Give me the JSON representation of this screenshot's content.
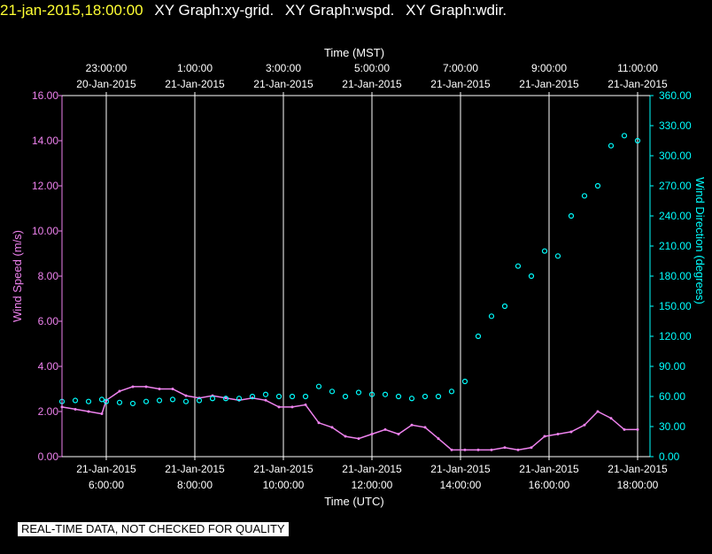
{
  "header": {
    "timestamp": "21-jan-2015,18:00:00",
    "graphs": [
      "XY Graph:xy-grid.",
      "XY Graph:wspd.",
      "XY Graph:wdir."
    ]
  },
  "notice": "REAL-TIME DATA, NOT CHECKED FOR QUALITY",
  "colors": {
    "speed": "#ee82ee",
    "direction": "#00ffff",
    "grid": "#ffffff",
    "timestamp": "#ffff33"
  },
  "chart_data": {
    "type": "scatter",
    "x_top_label": "Time (MST)",
    "x_bottom_label": "Time (UTC)",
    "ylabel_left": "Wind Speed (m/s)",
    "ylabel_right": "Wind Direction (degrees)",
    "ylim_left": [
      0,
      16
    ],
    "ylim_right": [
      0,
      360
    ],
    "xlim_utc_hours": [
      5.0,
      18.0
    ],
    "grid": "vertical only",
    "top_ticks": [
      {
        "hour": 6,
        "time": "23:00:00",
        "date": "20-Jan-2015"
      },
      {
        "hour": 8,
        "time": "1:00:00",
        "date": "21-Jan-2015"
      },
      {
        "hour": 10,
        "time": "3:00:00",
        "date": "21-Jan-2015"
      },
      {
        "hour": 12,
        "time": "5:00:00",
        "date": "21-Jan-2015"
      },
      {
        "hour": 14,
        "time": "7:00:00",
        "date": "21-Jan-2015"
      },
      {
        "hour": 16,
        "time": "9:00:00",
        "date": "21-Jan-2015"
      },
      {
        "hour": 18,
        "time": "11:00:00",
        "date": "21-Jan-2015"
      }
    ],
    "bottom_ticks": [
      {
        "hour": 6,
        "date": "21-Jan-2015",
        "time": "6:00:00"
      },
      {
        "hour": 8,
        "date": "21-Jan-2015",
        "time": "8:00:00"
      },
      {
        "hour": 10,
        "date": "21-Jan-2015",
        "time": "10:00:00"
      },
      {
        "hour": 12,
        "date": "21-Jan-2015",
        "time": "12:00:00"
      },
      {
        "hour": 14,
        "date": "21-Jan-2015",
        "time": "14:00:00"
      },
      {
        "hour": 16,
        "date": "21-Jan-2015",
        "time": "16:00:00"
      },
      {
        "hour": 18,
        "date": "21-Jan-2015",
        "time": "18:00:00"
      }
    ],
    "left_ticks": [
      "0.00",
      "2.00",
      "4.00",
      "6.00",
      "8.00",
      "10.00",
      "12.00",
      "14.00",
      "16.00"
    ],
    "right_ticks": [
      "0.00",
      "30.00",
      "60.00",
      "90.00",
      "120.00",
      "150.00",
      "180.00",
      "210.00",
      "240.00",
      "270.00",
      "300.00",
      "330.00",
      "360.00"
    ],
    "series": [
      {
        "name": "wspd",
        "x_hours": [
          5.0,
          5.3,
          5.6,
          5.9,
          6.0,
          6.3,
          6.6,
          6.9,
          7.2,
          7.5,
          7.8,
          8.1,
          8.4,
          8.7,
          9.0,
          9.3,
          9.6,
          9.9,
          10.2,
          10.5,
          10.8,
          11.1,
          11.4,
          11.7,
          12.0,
          12.3,
          12.6,
          12.9,
          13.2,
          13.5,
          13.8,
          14.1,
          14.4,
          14.7,
          15.0,
          15.3,
          15.6,
          15.9,
          16.2,
          16.5,
          16.8,
          17.1,
          17.4,
          17.7,
          18.0
        ],
        "values": [
          2.2,
          2.1,
          2.0,
          1.9,
          2.5,
          2.9,
          3.1,
          3.1,
          3.0,
          3.0,
          2.7,
          2.6,
          2.7,
          2.6,
          2.5,
          2.6,
          2.5,
          2.2,
          2.2,
          2.3,
          1.5,
          1.3,
          0.9,
          0.8,
          1.0,
          1.2,
          1.0,
          1.4,
          1.3,
          0.8,
          0.3,
          0.3,
          0.3,
          0.3,
          0.4,
          0.3,
          0.4,
          0.9,
          1.0,
          1.1,
          1.4,
          2.0,
          1.7,
          1.2,
          1.2
        ]
      },
      {
        "name": "wdir",
        "x_hours": [
          5.0,
          5.3,
          5.6,
          5.9,
          6.0,
          6.3,
          6.6,
          6.9,
          7.2,
          7.5,
          7.8,
          8.1,
          8.4,
          8.7,
          9.0,
          9.3,
          9.6,
          9.9,
          10.2,
          10.5,
          10.8,
          11.1,
          11.4,
          11.7,
          12.0,
          12.3,
          12.6,
          12.9,
          13.2,
          13.5,
          13.8,
          14.1,
          14.4,
          14.7,
          15.0,
          15.3,
          15.6,
          15.9,
          16.2,
          16.5,
          16.8,
          17.1,
          17.4,
          17.7,
          18.0
        ],
        "values": [
          55,
          56,
          55,
          57,
          55,
          54,
          53,
          55,
          56,
          57,
          55,
          56,
          58,
          58,
          58,
          60,
          62,
          60,
          60,
          60,
          70,
          65,
          60,
          64,
          62,
          62,
          60,
          58,
          60,
          60,
          65,
          75,
          120,
          140,
          150,
          190,
          180,
          205,
          200,
          240,
          260,
          270,
          310,
          320,
          315
        ]
      }
    ]
  }
}
